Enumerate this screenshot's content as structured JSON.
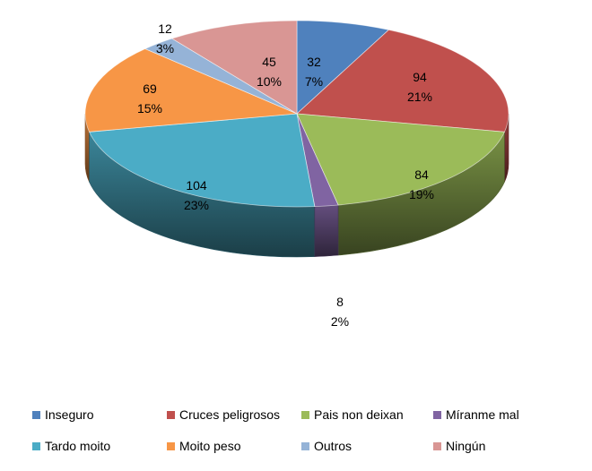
{
  "chart_data": {
    "type": "pie",
    "title": "",
    "categories": [
      "Inseguro",
      "Cruces peligrosos",
      "Pais non deixan",
      "Míranme mal",
      "Tardo moito",
      "Moito peso",
      "Outros",
      "Ningún"
    ],
    "values": [
      32,
      94,
      84,
      8,
      104,
      69,
      12,
      45
    ],
    "percent_labels": [
      "7%",
      "21%",
      "19%",
      "2%",
      "23%",
      "15%",
      "3%",
      "10%"
    ],
    "colors": [
      "#4F81BD",
      "#C0504D",
      "#9BBB59",
      "#8064A2",
      "#4BACC6",
      "#F79646",
      "#95B3D7",
      "#D99694"
    ],
    "style": "3d",
    "legend": {
      "position": "bottom"
    }
  }
}
